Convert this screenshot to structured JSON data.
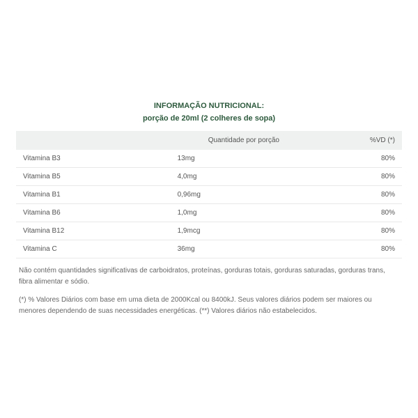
{
  "title": "INFORMAÇÃO NUTRICIONAL:",
  "subtitle": "porção de 20ml (2 colheres de sopa)",
  "header": {
    "qty_label": "Quantidade por porção",
    "vd_label": "%VD (*)"
  },
  "rows": [
    {
      "name": "Vitamina B3",
      "qty": "13mg",
      "vd": "80%"
    },
    {
      "name": "Vitamina B5",
      "qty": "4,0mg",
      "vd": "80%"
    },
    {
      "name": "Vitamina B1",
      "qty": "0,96mg",
      "vd": "80%"
    },
    {
      "name": "Vitamina B6",
      "qty": "1,0mg",
      "vd": "80%"
    },
    {
      "name": "Vitamina B12",
      "qty": "1,9mcg",
      "vd": "80%"
    },
    {
      "name": "Vitamina C",
      "qty": "36mg",
      "vd": "80%"
    }
  ],
  "note1": "Não contém quantidades significativas de carboidratos, proteínas, gorduras totais, gorduras saturadas, gorduras trans, fibra alimentar e sódio.",
  "note2": "(*) % Valores Diários com base em uma dieta de 2000Kcal ou 8400kJ. Seus valores diários podem ser maiores ou menores dependendo de suas necessidades energéticas. (**) Valores diários não estabelecidos.",
  "colors": {
    "heading": "#2d5a3d",
    "text": "#555555",
    "note_text": "#666666",
    "header_bg": "#eef1ef",
    "row_border": "#e8e8e8",
    "background": "#ffffff"
  },
  "fontsizes": {
    "title": 11,
    "subtitle": 11,
    "table": 10,
    "note": 10
  },
  "table_meta": {
    "type": "table",
    "columns": [
      "name",
      "qty",
      "vd"
    ],
    "col_widths_pct": [
      40,
      38,
      22
    ],
    "col_align": [
      "left",
      "left",
      "right"
    ]
  }
}
